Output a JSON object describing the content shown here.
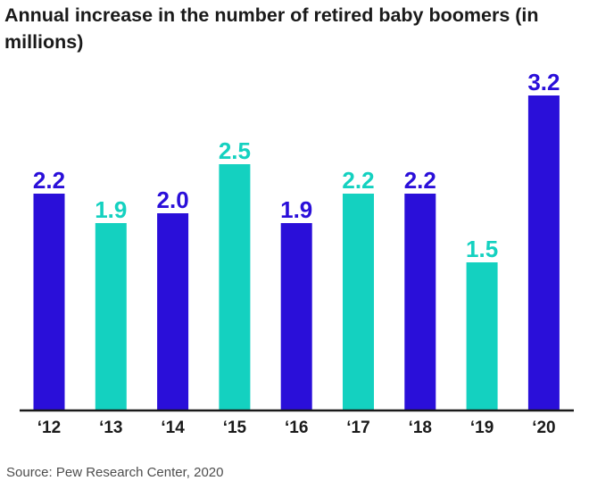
{
  "chart_data": {
    "type": "bar",
    "title": "Annual increase in the number of retired baby boomers (in millions)",
    "categories": [
      "‘12",
      "‘13",
      "‘14",
      "‘15",
      "‘16",
      "‘17",
      "‘18",
      "‘19",
      "‘20"
    ],
    "values": [
      2.2,
      1.9,
      2.0,
      2.5,
      1.9,
      2.2,
      2.2,
      1.5,
      3.2
    ],
    "value_labels": [
      "2.2",
      "1.9",
      "2.0",
      "2.5",
      "1.9",
      "2.2",
      "2.2",
      "1.5",
      "3.2"
    ],
    "xlabel": "",
    "ylabel": "",
    "ylim": [
      0,
      3.2
    ],
    "grid": false,
    "legend": "none",
    "bar_colors": [
      "#2a0fd9",
      "#14d1c0",
      "#2a0fd9",
      "#14d1c0",
      "#2a0fd9",
      "#14d1c0",
      "#2a0fd9",
      "#14d1c0",
      "#2a0fd9"
    ],
    "label_colors": [
      "#2a0fd9",
      "#14d1c0",
      "#2a0fd9",
      "#14d1c0",
      "#2a0fd9",
      "#14d1c0",
      "#2a0fd9",
      "#14d1c0",
      "#2a0fd9"
    ],
    "axis_color": "#1a1a1a"
  },
  "source": "Source: Pew Research Center, 2020"
}
